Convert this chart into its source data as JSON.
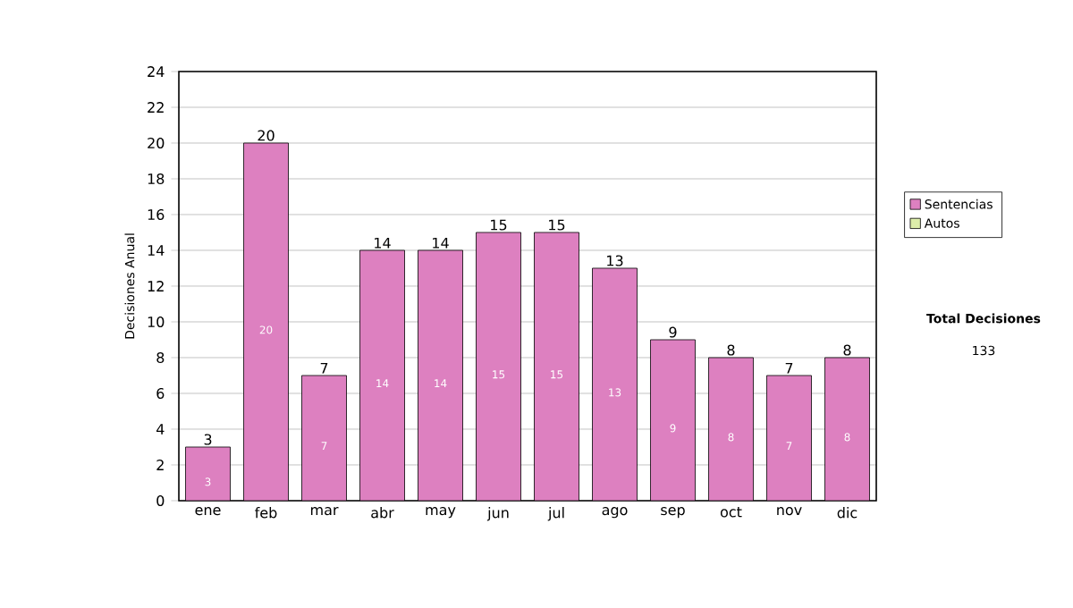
{
  "chart_data": {
    "type": "bar",
    "stacked": true,
    "ylabel": "Decisiones Anual",
    "categories": [
      "ene",
      "feb",
      "mar",
      "abr",
      "may",
      "jun",
      "jul",
      "ago",
      "sep",
      "oct",
      "nov",
      "dic"
    ],
    "series": [
      {
        "name": "Sentencias",
        "color": "#dd80c0",
        "values": [
          3,
          20,
          7,
          14,
          14,
          15,
          15,
          13,
          9,
          8,
          7,
          8
        ]
      },
      {
        "name": "Autos",
        "color": "#ddeeaa",
        "values": [
          null,
          null,
          null,
          null,
          null,
          null,
          null,
          null,
          null,
          null,
          null,
          null
        ]
      }
    ],
    "totals": [
      "3",
      "20",
      "7",
      "14",
      "14",
      "15",
      "15",
      "13",
      "9",
      "8",
      "7",
      "8"
    ],
    "data_labels": true,
    "ylim": [
      0,
      24
    ],
    "yticks": [
      0,
      2,
      4,
      6,
      8,
      10,
      12,
      14,
      16,
      18,
      20,
      22,
      24
    ],
    "grid": "y",
    "legend": "right",
    "annotations": [
      "Total Decisiones",
      "133"
    ]
  }
}
